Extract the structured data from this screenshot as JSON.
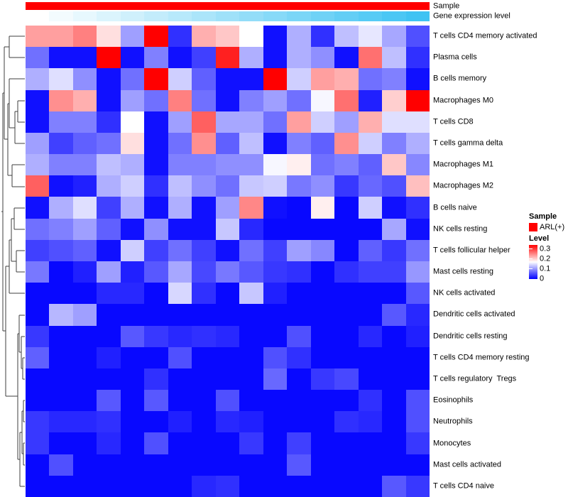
{
  "annotations": {
    "sample_label": "Sample",
    "gene_label": "Gene expression level",
    "sample_color": "#FF0000",
    "gene_gradient_start": "#FFFFFF",
    "gene_gradient_end": "#3FC3F3"
  },
  "legend": {
    "sample_title": "Sample",
    "sample_items": [
      {
        "label": "ARL(+)",
        "color": "#FF0000"
      }
    ],
    "level_title": "Level",
    "level_ticks": [
      {
        "label": "0.3",
        "value": 0.3
      },
      {
        "label": "0.2",
        "value": 0.2
      },
      {
        "label": "0.1",
        "value": 0.1
      },
      {
        "label": "0",
        "value": 0.0
      }
    ],
    "level_range": [
      0,
      0.34
    ]
  },
  "chart_data": {
    "type": "heatmap",
    "title": "",
    "n_cols": 17,
    "rows": [
      "T cells CD4 memory activated",
      "Plasma cells",
      "B cells memory",
      "Macrophages M0",
      "T cells CD8",
      "T cells gamma delta",
      "Macrophages M1",
      "Macrophages M2",
      "B cells naive",
      "NK cells resting",
      "T cells follicular helper",
      "Mast cells resting",
      "NK cells activated",
      "Dendritic cells activated",
      "Dendritic cells resting",
      "T cells CD4 memory resting",
      "T cells regulatory  Tregs",
      "Eosinophils",
      "Neutrophils",
      "Monocytes",
      "Mast cells activated",
      "T cells CD4 naive"
    ],
    "colormap": {
      "low": "#0000FF",
      "mid": "#FFFFFF",
      "high": "#FF0000",
      "min": 0,
      "mid_value": 0.16,
      "max": 0.32
    },
    "column_annotation_sample": "ARL(+) all columns",
    "column_annotation_gene_level": "increasing left to right, white to sky blue",
    "values": [
      [
        0.22,
        0.22,
        0.24,
        0.18,
        0.1,
        0.32,
        0.03,
        0.21,
        0.195,
        0.16,
        0.01,
        0.11,
        0.03,
        0.12,
        0.145,
        0.105,
        0.05
      ],
      [
        0.07,
        0.01,
        0.01,
        0.32,
        0.01,
        0.08,
        0.01,
        0.04,
        0.3,
        0.11,
        0.01,
        0.11,
        0.09,
        0.01,
        0.25,
        0.12,
        0.03
      ],
      [
        0.11,
        0.14,
        0.09,
        0.01,
        0.07,
        0.32,
        0.13,
        0.06,
        0.01,
        0.01,
        0.32,
        0.13,
        0.22,
        0.21,
        0.07,
        0.08,
        0.01
      ],
      [
        0.01,
        0.23,
        0.21,
        0.01,
        0.1,
        0.07,
        0.24,
        0.07,
        0.01,
        0.08,
        0.1,
        0.07,
        0.155,
        0.25,
        0.02,
        0.19,
        0.32
      ],
      [
        0.01,
        0.08,
        0.08,
        0.03,
        0.16,
        0.01,
        0.1,
        0.26,
        0.105,
        0.105,
        0.07,
        0.22,
        0.13,
        0.1,
        0.21,
        0.14,
        0.14
      ],
      [
        0.1,
        0.04,
        0.06,
        0.07,
        0.18,
        0.01,
        0.07,
        0.23,
        0.06,
        0.12,
        0.01,
        0.08,
        0.06,
        0.23,
        0.13,
        0.08,
        0.11
      ],
      [
        0.11,
        0.08,
        0.08,
        0.12,
        0.11,
        0.01,
        0.08,
        0.08,
        0.09,
        0.09,
        0.155,
        0.17,
        0.07,
        0.08,
        0.06,
        0.195,
        0.085
      ],
      [
        0.26,
        0.01,
        0.02,
        0.11,
        0.13,
        0.03,
        0.12,
        0.09,
        0.07,
        0.125,
        0.13,
        0.075,
        0.09,
        0.035,
        0.065,
        0.05,
        0.2
      ],
      [
        0.01,
        0.11,
        0.14,
        0.04,
        0.11,
        0.01,
        0.11,
        0.01,
        0.1,
        0.235,
        0.01,
        0.005,
        0.17,
        0.005,
        0.13,
        0.01,
        0.03
      ],
      [
        0.07,
        0.08,
        0.1,
        0.06,
        0.01,
        0.09,
        0.01,
        0.01,
        0.125,
        0.025,
        0.005,
        0.005,
        0.005,
        0.005,
        0.005,
        0.105,
        0.01
      ],
      [
        0.04,
        0.05,
        0.06,
        0.01,
        0.13,
        0.04,
        0.07,
        0.04,
        0.01,
        0.07,
        0.04,
        0.1,
        0.085,
        0.005,
        0.06,
        0.035,
        0.07
      ],
      [
        0.075,
        0.005,
        0.02,
        0.1,
        0.02,
        0.055,
        0.105,
        0.045,
        0.075,
        0.055,
        0.035,
        0.03,
        0.005,
        0.03,
        0.04,
        0.04,
        0.095
      ],
      [
        0.005,
        0.005,
        0.005,
        0.025,
        0.025,
        0.005,
        0.135,
        0.03,
        0.005,
        0.125,
        0.02,
        0.005,
        0.005,
        0.005,
        0.005,
        0.005,
        0.055
      ],
      [
        0.005,
        0.115,
        0.1,
        0.005,
        0.005,
        0.005,
        0.005,
        0.005,
        0.005,
        0.005,
        0.005,
        0.005,
        0.005,
        0.005,
        0.005,
        0.055,
        0.025
      ],
      [
        0.035,
        0.005,
        0.005,
        0.005,
        0.055,
        0.035,
        0.025,
        0.03,
        0.025,
        0.005,
        0.005,
        0.05,
        0.005,
        0.005,
        0.025,
        0.005,
        0.02
      ],
      [
        0.06,
        0.005,
        0.005,
        0.02,
        0.005,
        0.005,
        0.05,
        0.005,
        0.005,
        0.005,
        0.05,
        0.03,
        0.005,
        0.005,
        0.005,
        0.005,
        0.005
      ],
      [
        0.005,
        0.005,
        0.005,
        0.005,
        0.005,
        0.03,
        0.005,
        0.005,
        0.005,
        0.005,
        0.065,
        0.005,
        0.035,
        0.045,
        0.005,
        0.005,
        0.005
      ],
      [
        0.005,
        0.005,
        0.005,
        0.055,
        0.005,
        0.055,
        0.005,
        0.005,
        0.05,
        0.005,
        0.005,
        0.005,
        0.005,
        0.005,
        0.03,
        0.005,
        0.05
      ],
      [
        0.035,
        0.025,
        0.025,
        0.03,
        0.005,
        0.005,
        0.02,
        0.005,
        0.025,
        0.02,
        0.005,
        0.005,
        0.005,
        0.03,
        0.025,
        0.005,
        0.05
      ],
      [
        0.035,
        0.005,
        0.005,
        0.025,
        0.005,
        0.05,
        0.005,
        0.005,
        0.005,
        0.035,
        0.005,
        0.04,
        0.005,
        0.005,
        0.005,
        0.005,
        0.035
      ],
      [
        0.005,
        0.05,
        0.005,
        0.005,
        0.005,
        0.005,
        0.005,
        0.005,
        0.005,
        0.005,
        0.005,
        0.055,
        0.005,
        0.005,
        0.005,
        0.005,
        0.005
      ],
      [
        0.005,
        0.005,
        0.005,
        0.005,
        0.005,
        0.005,
        0.005,
        0.025,
        0.03,
        0.005,
        0.005,
        0.005,
        0.005,
        0.005,
        0.005,
        0.055,
        0.035
      ]
    ],
    "row_dendrogram_segments": [
      [
        13,
        51,
        35,
        51
      ],
      [
        13,
        81,
        35,
        81
      ],
      [
        13,
        51,
        13,
        81
      ],
      [
        6,
        66,
        13,
        66
      ],
      [
        25,
        142,
        35,
        142
      ],
      [
        25,
        172,
        35,
        172
      ],
      [
        25,
        142,
        25,
        172
      ],
      [
        21,
        157,
        25,
        157
      ],
      [
        21,
        157,
        21,
        202
      ],
      [
        21,
        202,
        35,
        202
      ],
      [
        13,
        180,
        21,
        180
      ],
      [
        13,
        111,
        35,
        111
      ],
      [
        13,
        111,
        13,
        180
      ],
      [
        11,
        146,
        13,
        146
      ],
      [
        17,
        232,
        35,
        232
      ],
      [
        17,
        263,
        35,
        263
      ],
      [
        17,
        232,
        17,
        263
      ],
      [
        11,
        247,
        17,
        247
      ],
      [
        11,
        146,
        11,
        247
      ],
      [
        6,
        196,
        11,
        196
      ],
      [
        6,
        66,
        6,
        196
      ],
      [
        4,
        131,
        6,
        131
      ],
      [
        20,
        293,
        35,
        293
      ],
      [
        20,
        323,
        35,
        323
      ],
      [
        20,
        293,
        20,
        323
      ],
      [
        16,
        308,
        20,
        308
      ],
      [
        23,
        353,
        35,
        353
      ],
      [
        23,
        383,
        35,
        383
      ],
      [
        23,
        353,
        23,
        383
      ],
      [
        16,
        368,
        23,
        368
      ],
      [
        16,
        308,
        16,
        368
      ],
      [
        13,
        338,
        16,
        338
      ],
      [
        13,
        338,
        13,
        413
      ],
      [
        13,
        413,
        35,
        413
      ],
      [
        8,
        375,
        13,
        375
      ],
      [
        32,
        504,
        35,
        504
      ],
      [
        32,
        534,
        35,
        534
      ],
      [
        32,
        504,
        32,
        534
      ],
      [
        30,
        519,
        32,
        519
      ],
      [
        30,
        474,
        35,
        474
      ],
      [
        30,
        474,
        30,
        519
      ],
      [
        27,
        496,
        30,
        496
      ],
      [
        27,
        444,
        35,
        444
      ],
      [
        27,
        444,
        27,
        496
      ],
      [
        25,
        470,
        27,
        470
      ],
      [
        33,
        564,
        35,
        564
      ],
      [
        33,
        594,
        35,
        594
      ],
      [
        33,
        564,
        33,
        594
      ],
      [
        31,
        579,
        33,
        579
      ],
      [
        33,
        624,
        35,
        624
      ],
      [
        33,
        655,
        35,
        655
      ],
      [
        33,
        624,
        33,
        655
      ],
      [
        31,
        639,
        33,
        639
      ],
      [
        31,
        579,
        31,
        639
      ],
      [
        28,
        609,
        31,
        609
      ],
      [
        28,
        609,
        28,
        685
      ],
      [
        28,
        685,
        35,
        685
      ],
      [
        25,
        647,
        28,
        647
      ],
      [
        25,
        470,
        25,
        647
      ],
      [
        8,
        558,
        25,
        558
      ],
      [
        8,
        375,
        8,
        558
      ],
      [
        4,
        466,
        8,
        466
      ],
      [
        4,
        131,
        4,
        466
      ],
      [
        2,
        298,
        4,
        298
      ]
    ],
    "dendrogram_color": "#3F3F3F"
  }
}
